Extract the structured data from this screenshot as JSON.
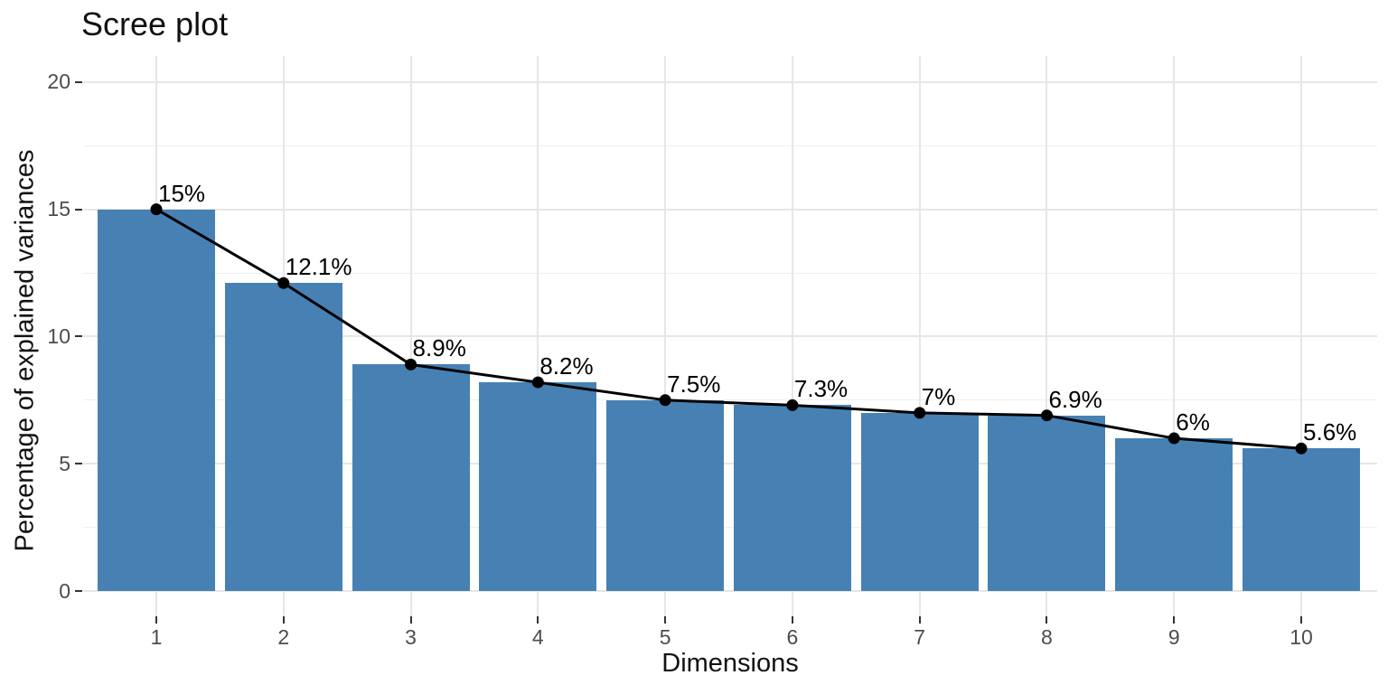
{
  "title": "Scree plot",
  "chart_data": {
    "type": "bar",
    "overlay": "line-with-points",
    "title": "Scree plot",
    "xlabel": "Dimensions",
    "ylabel": "Percentage of explained variances",
    "categories": [
      "1",
      "2",
      "3",
      "4",
      "5",
      "6",
      "7",
      "8",
      "9",
      "10"
    ],
    "values": [
      15,
      12.1,
      8.9,
      8.2,
      7.5,
      7.3,
      7,
      6.9,
      6,
      5.6
    ],
    "point_labels": [
      "15%",
      "12.1%",
      "8.9%",
      "8.2%",
      "7.5%",
      "7.3%",
      "7%",
      "6.9%",
      "6%",
      "5.6%"
    ],
    "ylim": [
      0,
      20.9
    ],
    "yticks": [
      0,
      5,
      10,
      15,
      20
    ],
    "ytick_labels": [
      "0",
      "5",
      "10",
      "15",
      "20"
    ],
    "yticks_minor": [
      2.5,
      7.5,
      12.5,
      17.5
    ],
    "grid": "on",
    "legend": "none",
    "colors": {
      "bar_fill": "#4781B4",
      "line": "#000000",
      "point": "#000000",
      "label_text": "#000000",
      "tick_text": "#4D4D4D",
      "tick_mark": "#333333",
      "grid_major": "#E6E6E6",
      "grid_minor": "#EFEFEF",
      "background": "#FFFFFF"
    }
  }
}
